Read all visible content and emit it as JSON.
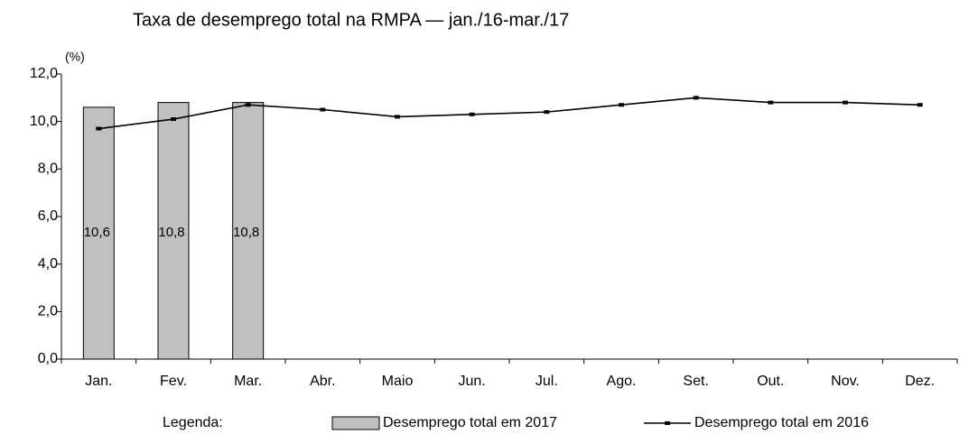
{
  "chart_data": {
    "type": "bar",
    "title": "Taxa de desemprego total na RMPA — jan./16-mar./17",
    "y_label": "(%)",
    "categories": [
      "Jan.",
      "Fev.",
      "Mar.",
      "Abr.",
      "Maio",
      "Jun.",
      "Jul.",
      "Ago.",
      "Set.",
      "Out.",
      "Nov.",
      "Dez."
    ],
    "series": [
      {
        "name": "Desemprego total em 2017",
        "type": "bar",
        "color": "#c0c0c0",
        "values": [
          10.6,
          10.8,
          10.8,
          null,
          null,
          null,
          null,
          null,
          null,
          null,
          null,
          null
        ],
        "value_labels": [
          "10,6",
          "10,8",
          "10,8",
          null,
          null,
          null,
          null,
          null,
          null,
          null,
          null,
          null
        ]
      },
      {
        "name": "Desemprego total em 2016",
        "type": "line",
        "color": "#000000",
        "values": [
          9.7,
          10.1,
          10.7,
          10.5,
          10.2,
          10.3,
          10.4,
          10.7,
          11.0,
          10.8,
          10.8,
          10.7
        ]
      }
    ],
    "ylim": [
      0,
      12
    ],
    "yticks": [
      {
        "value": 0,
        "label": "0,0"
      },
      {
        "value": 2,
        "label": "2,0"
      },
      {
        "value": 4,
        "label": "4,0"
      },
      {
        "value": 6,
        "label": "6,0"
      },
      {
        "value": 8,
        "label": "8,0"
      },
      {
        "value": 10,
        "label": "10,0"
      },
      {
        "value": 12,
        "label": "12,0"
      }
    ],
    "legend_title": "Legenda:",
    "legend_position": "bottom",
    "grid": false
  }
}
